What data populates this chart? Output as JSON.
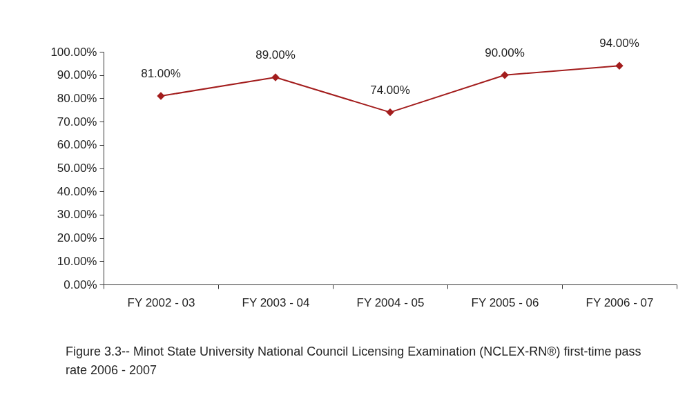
{
  "chart_data": {
    "type": "line",
    "categories": [
      "FY 2002 - 03",
      "FY 2003 - 04",
      "FY 2004 - 05",
      "FY 2005 - 06",
      "FY 2006 - 07"
    ],
    "series": [
      {
        "color": "#a31d1d",
        "values": [
          81,
          89,
          74,
          90,
          94
        ],
        "value_labels": [
          "81.00%",
          "89.00%",
          "74.00%",
          "90.00%",
          "94.00%"
        ]
      }
    ],
    "ylim": [
      0,
      100
    ],
    "yticks": [
      {
        "value": 0,
        "label": "0.00%"
      },
      {
        "value": 10,
        "label": "10.00%"
      },
      {
        "value": 20,
        "label": "20.00%"
      },
      {
        "value": 30,
        "label": "30.00%"
      },
      {
        "value": 40,
        "label": "40.00%"
      },
      {
        "value": 50,
        "label": "50.00%"
      },
      {
        "value": 60,
        "label": "60.00%"
      },
      {
        "value": 70,
        "label": "70.00%"
      },
      {
        "value": 80,
        "label": "80.00%"
      },
      {
        "value": 90,
        "label": "90.00%"
      },
      {
        "value": 100,
        "label": "100.00%"
      }
    ],
    "marker": "diamond",
    "line_style": "solid",
    "annotations": [
      "Figure 3.3-- Minot State University National Council Licensing Examination (NCLEX-RN®) first-time pass rate 2006 - 2007"
    ]
  }
}
